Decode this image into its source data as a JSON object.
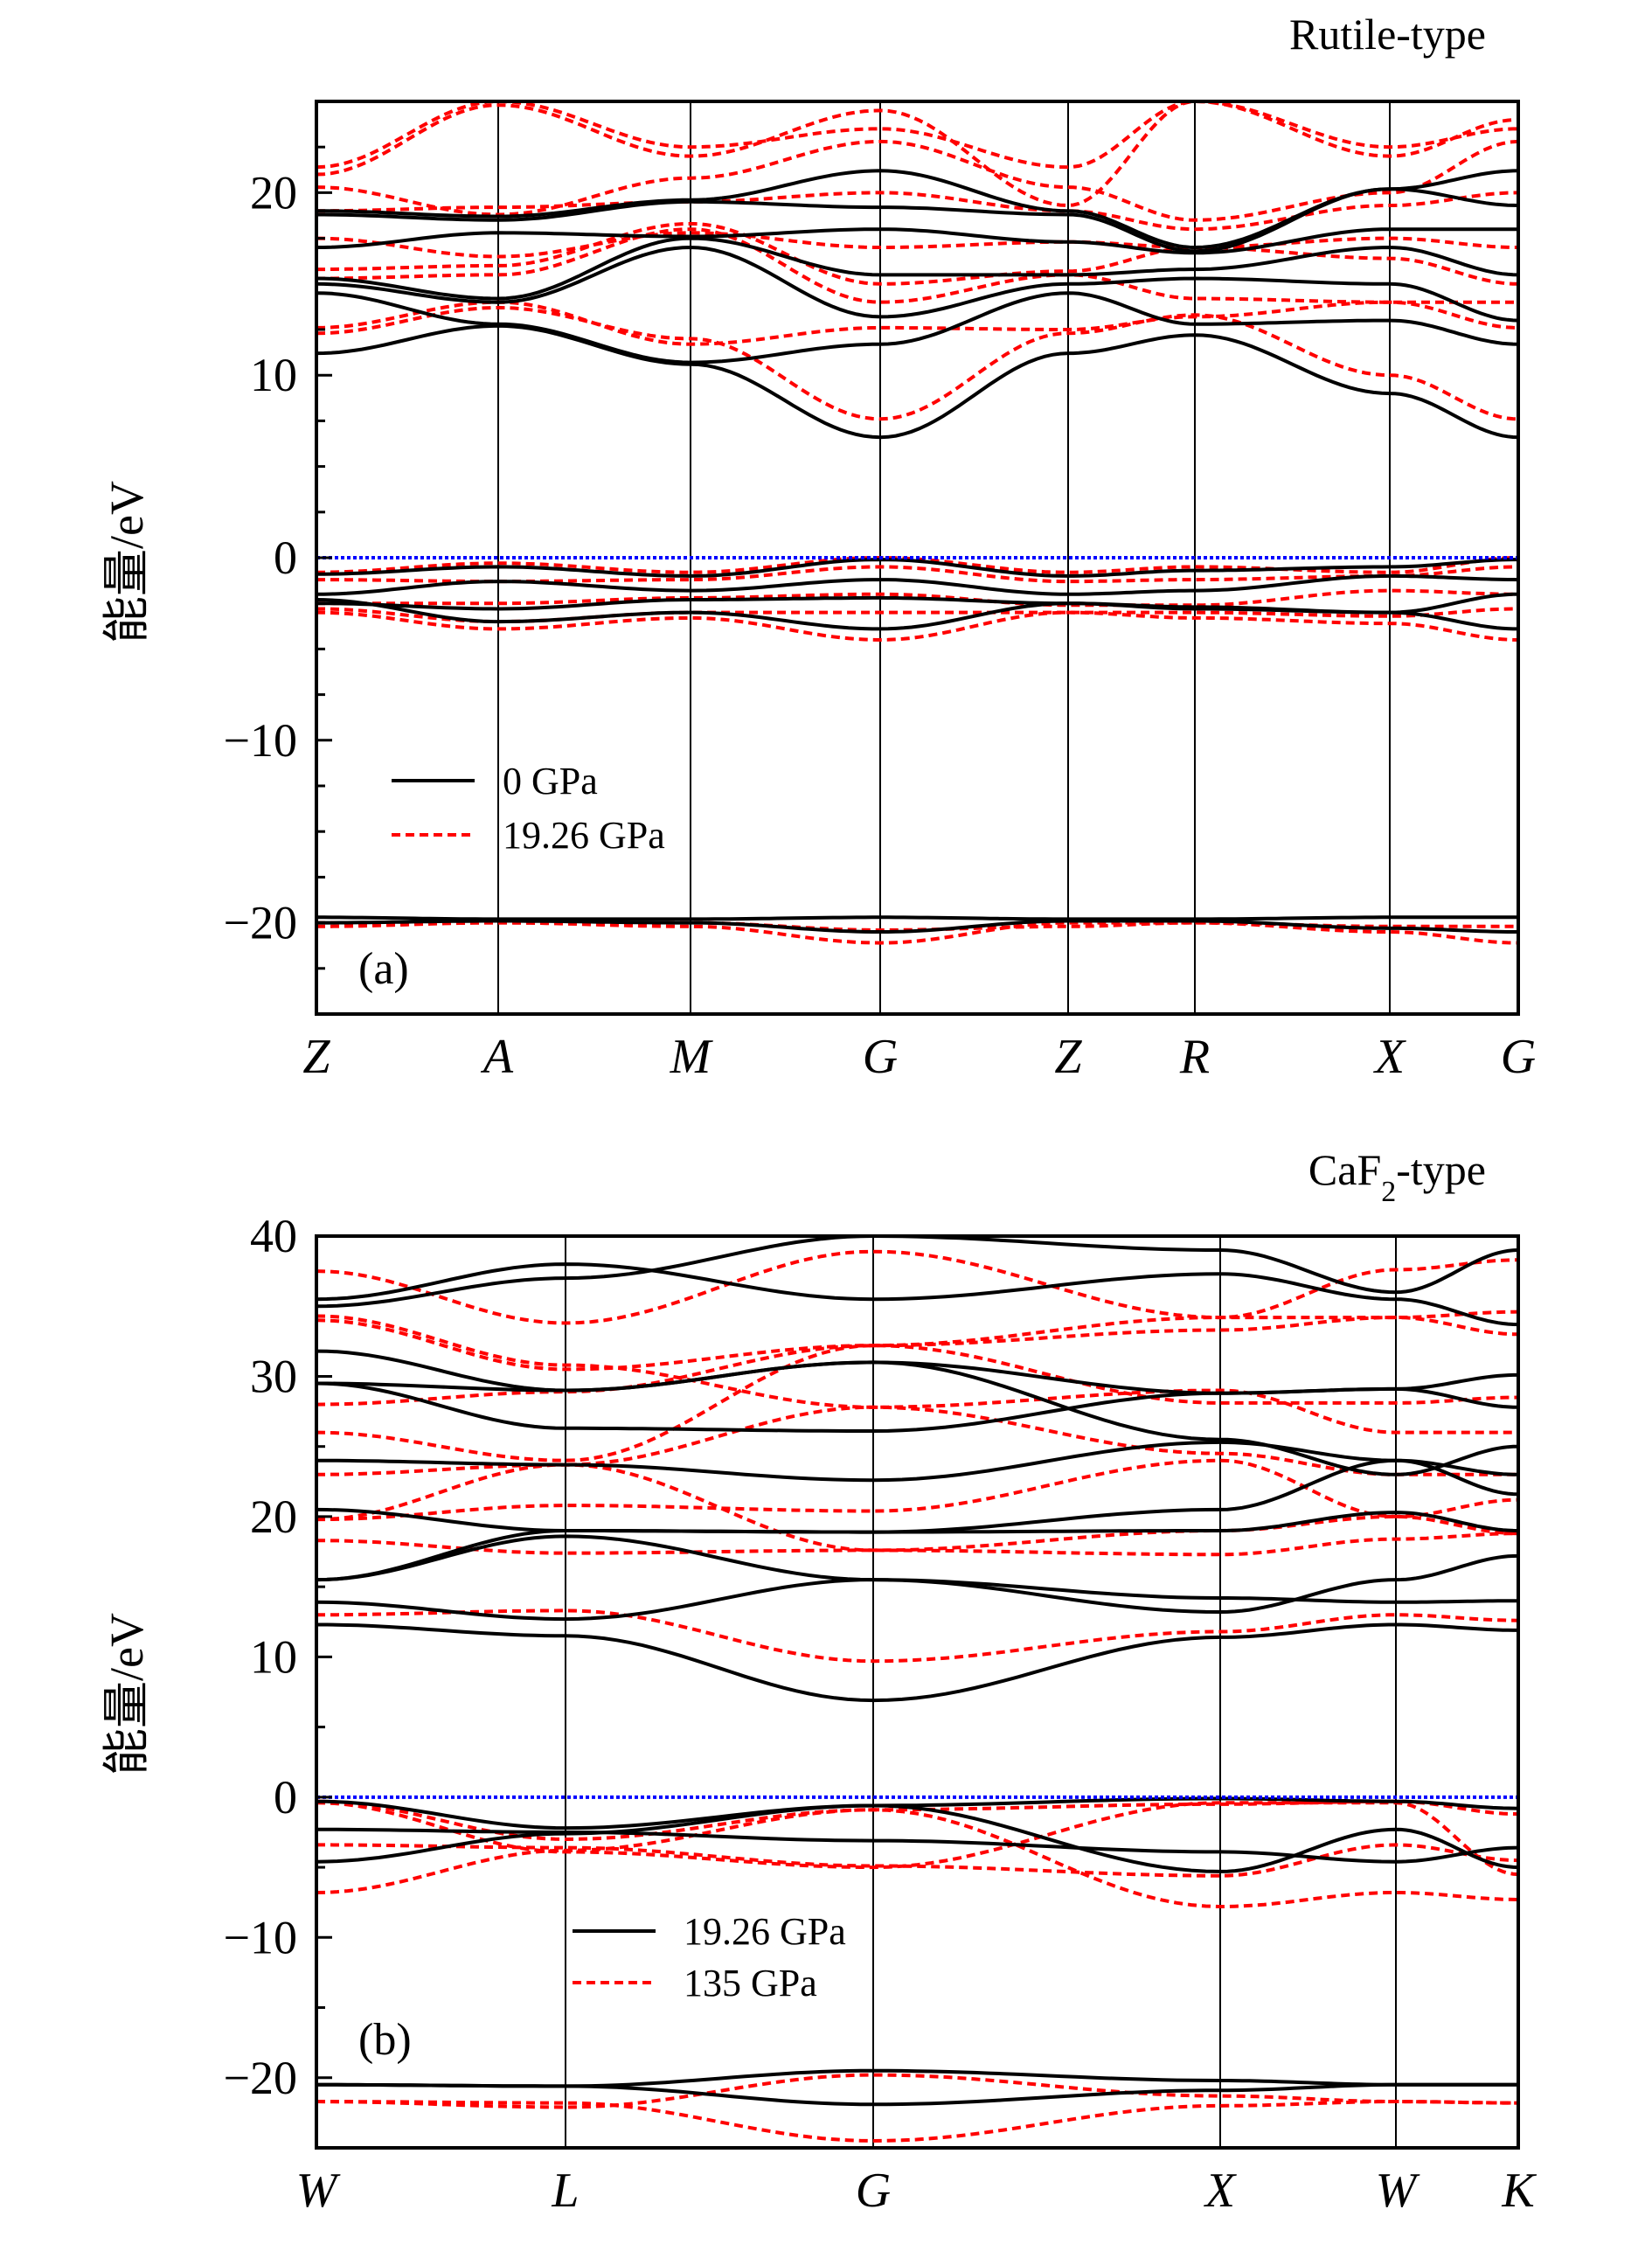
{
  "chart_data": [
    {
      "type": "line",
      "title": "Rutile-type",
      "panel_label": "(a)",
      "ylabel": "能量/eV",
      "ylim": [
        -25,
        25
      ],
      "yticks": [
        -20,
        -10,
        0,
        10,
        20
      ],
      "kpoints": [
        "Z",
        "A",
        "M",
        "G",
        "Z",
        "R",
        "X",
        "G"
      ],
      "fermi_level": 0,
      "fermi_color": "#0000ff",
      "grid": false,
      "legend_placement": "lower-left",
      "series": [
        {
          "name": "0 GPa",
          "color": "#000000",
          "style": "solid",
          "bands": [
            [
              11.2,
              12.7,
              10.6,
              6.6,
              11.2,
              12.2,
              9.0,
              6.6
            ],
            [
              14.5,
              12.8,
              10.7,
              11.7,
              14.5,
              12.8,
              13.0,
              11.7
            ],
            [
              15.0,
              14.0,
              17.0,
              13.2,
              15.0,
              15.3,
              15.0,
              13.0
            ],
            [
              15.3,
              14.2,
              17.5,
              15.5,
              15.5,
              15.8,
              17.0,
              15.5
            ],
            [
              17.0,
              17.8,
              17.6,
              18.0,
              17.3,
              16.7,
              18.0,
              18.0
            ],
            [
              18.8,
              18.5,
              19.5,
              19.2,
              18.8,
              16.8,
              20.2,
              19.3
            ],
            [
              19.0,
              18.7,
              19.6,
              21.2,
              19.0,
              17.0,
              20.2,
              21.2
            ],
            [
              -0.9,
              -0.5,
              -1.0,
              -0.1,
              -1.0,
              -0.7,
              -0.5,
              -0.1
            ],
            [
              -2.0,
              -1.3,
              -1.8,
              -1.2,
              -2.0,
              -1.8,
              -1.0,
              -1.2
            ],
            [
              -2.5,
              -2.8,
              -2.3,
              -2.2,
              -2.5,
              -2.8,
              -3.0,
              -2.0
            ],
            [
              -2.3,
              -3.5,
              -3.0,
              -3.9,
              -2.5,
              -2.7,
              -3.0,
              -3.9
            ],
            [
              -19.7,
              -19.8,
              -19.8,
              -19.7,
              -19.8,
              -19.8,
              -19.7,
              -19.7
            ],
            [
              -20.0,
              -19.9,
              -20.0,
              -20.5,
              -19.9,
              -19.9,
              -20.3,
              -20.5
            ]
          ]
        },
        {
          "name": "19.26 GPa",
          "color": "#ff0000",
          "style": "dashed",
          "bands": [
            [
              12.3,
              13.7,
              12.0,
              7.6,
              12.3,
              13.3,
              10.0,
              7.6
            ],
            [
              12.6,
              14.0,
              11.7,
              12.6,
              12.5,
              13.2,
              14.0,
              12.6
            ],
            [
              15.3,
              15.5,
              18.0,
              14.0,
              15.5,
              14.2,
              14.0,
              14.0
            ],
            [
              15.8,
              16.0,
              18.3,
              15.0,
              15.7,
              17.0,
              16.4,
              15.0
            ],
            [
              17.5,
              16.5,
              17.8,
              17.0,
              17.3,
              17.0,
              17.5,
              17.0
            ],
            [
              19.0,
              19.2,
              19.5,
              20.0,
              19.0,
              18.0,
              19.3,
              20.0
            ],
            [
              20.3,
              18.8,
              20.8,
              22.8,
              20.3,
              18.5,
              20.0,
              22.8
            ],
            [
              21.4,
              25.0,
              22.5,
              23.5,
              21.4,
              25.0,
              22.5,
              23.5
            ],
            [
              21.0,
              24.8,
              22.0,
              24.5,
              19.3,
              25.0,
              22.0,
              24.0
            ],
            [
              -0.8,
              -0.3,
              -0.8,
              0.0,
              -0.8,
              -0.5,
              -0.8,
              0.0
            ],
            [
              -1.2,
              -1.3,
              -1.2,
              -0.5,
              -1.3,
              -1.2,
              -1.0,
              -0.5
            ],
            [
              -2.5,
              -2.5,
              -2.2,
              -2.0,
              -2.6,
              -2.6,
              -1.8,
              -2.0
            ],
            [
              -3.0,
              -3.9,
              -3.3,
              -4.5,
              -3.0,
              -3.3,
              -3.6,
              -4.5
            ],
            [
              -2.8,
              -3.5,
              -3.0,
              -3.0,
              -3.0,
              -3.0,
              -3.2,
              -2.8
            ],
            [
              -20.0,
              -20.0,
              -20.2,
              -21.1,
              -20.0,
              -20.0,
              -20.5,
              -21.1
            ],
            [
              -20.2,
              -20.0,
              -20.0,
              -20.4,
              -20.2,
              -20.0,
              -20.2,
              -20.2
            ]
          ]
        }
      ]
    },
    {
      "type": "line",
      "title": "CaF",
      "title_sub": "2",
      "title_suffix": "-type",
      "panel_label": "(b)",
      "ylabel": "能量/eV",
      "ylim": [
        -25,
        40
      ],
      "yticks": [
        -20,
        -10,
        0,
        10,
        20,
        30,
        40
      ],
      "kpoints": [
        "W",
        "L",
        "G",
        "X",
        "W",
        "K"
      ],
      "fermi_level": 0,
      "fermi_color": "#0000ff",
      "grid": false,
      "legend_placement": "center-left",
      "series": [
        {
          "name": "19.26 GPa",
          "color": "#000000",
          "style": "solid",
          "bands": [
            [
              12.3,
              11.5,
              6.9,
              11.4,
              12.3,
              11.9
            ],
            [
              13.9,
              12.7,
              15.5,
              14.2,
              13.9,
              14.0
            ],
            [
              15.5,
              18.6,
              15.5,
              13.2,
              15.5,
              17.2
            ],
            [
              15.5,
              19.0,
              18.9,
              19.0,
              20.3,
              19.0
            ],
            [
              20.5,
              19.0,
              18.9,
              20.5,
              24.0,
              21.6
            ],
            [
              24.0,
              23.7,
              22.6,
              25.3,
              24.0,
              23.0
            ],
            [
              29.5,
              26.3,
              26.1,
              28.8,
              29.1,
              30.1
            ],
            [
              29.5,
              29.0,
              31.0,
              28.8,
              29.1,
              27.8
            ],
            [
              31.8,
              29.0,
              31.0,
              25.5,
              23.0,
              25.0
            ],
            [
              35.5,
              38.0,
              35.5,
              37.3,
              35.5,
              33.7
            ],
            [
              35.0,
              37.0,
              40.0,
              39.0,
              36.0,
              39.0
            ],
            [
              -0.3,
              -2.2,
              -0.6,
              -0.1,
              -0.3,
              -0.8
            ],
            [
              -2.3,
              -2.5,
              -3.1,
              -3.9,
              -4.6,
              -3.6
            ],
            [
              -4.6,
              -2.6,
              -0.6,
              -5.3,
              -2.3,
              -5.0
            ],
            [
              -20.5,
              -20.6,
              -19.5,
              -20.2,
              -20.5,
              -20.5
            ],
            [
              -20.5,
              -20.6,
              -21.9,
              -20.9,
              -20.5,
              -20.5
            ]
          ]
        },
        {
          "name": "135 GPa",
          "color": "#ff0000",
          "style": "dashed",
          "bands": [
            [
              13.0,
              13.3,
              9.7,
              11.8,
              13.0,
              12.6
            ],
            [
              18.3,
              17.4,
              17.6,
              17.3,
              18.4,
              18.8
            ],
            [
              19.8,
              20.8,
              20.4,
              24.0,
              20.0,
              21.2
            ],
            [
              19.8,
              23.7,
              17.6,
              19.0,
              20.0,
              18.8
            ],
            [
              23.0,
              23.7,
              27.8,
              24.5,
              23.0,
              23.0
            ],
            [
              26.0,
              24.0,
              32.2,
              28.1,
              28.1,
              28.5
            ],
            [
              28.0,
              28.9,
              32.2,
              33.3,
              34.2,
              33.0
            ],
            [
              34.0,
              30.5,
              32.2,
              34.2,
              34.2,
              34.6
            ],
            [
              37.5,
              33.8,
              38.9,
              34.2,
              37.6,
              38.3
            ],
            [
              34.3,
              30.8,
              27.8,
              29.0,
              26.0,
              26.0
            ],
            [
              -0.3,
              -3.0,
              -0.9,
              -0.5,
              -0.3,
              -1.2
            ],
            [
              -3.4,
              -3.6,
              -4.9,
              -5.6,
              -3.4,
              -4.5
            ],
            [
              -6.8,
              -3.8,
              -0.9,
              -7.8,
              -6.8,
              -7.3
            ],
            [
              -0.4,
              -3.9,
              -5.0,
              -0.4,
              -0.4,
              -5.5
            ],
            [
              -21.7,
              -22.1,
              -19.8,
              -21.3,
              -21.7,
              -21.8
            ],
            [
              -21.7,
              -21.8,
              -24.5,
              -22.0,
              -21.7,
              -21.8
            ]
          ]
        }
      ]
    }
  ]
}
